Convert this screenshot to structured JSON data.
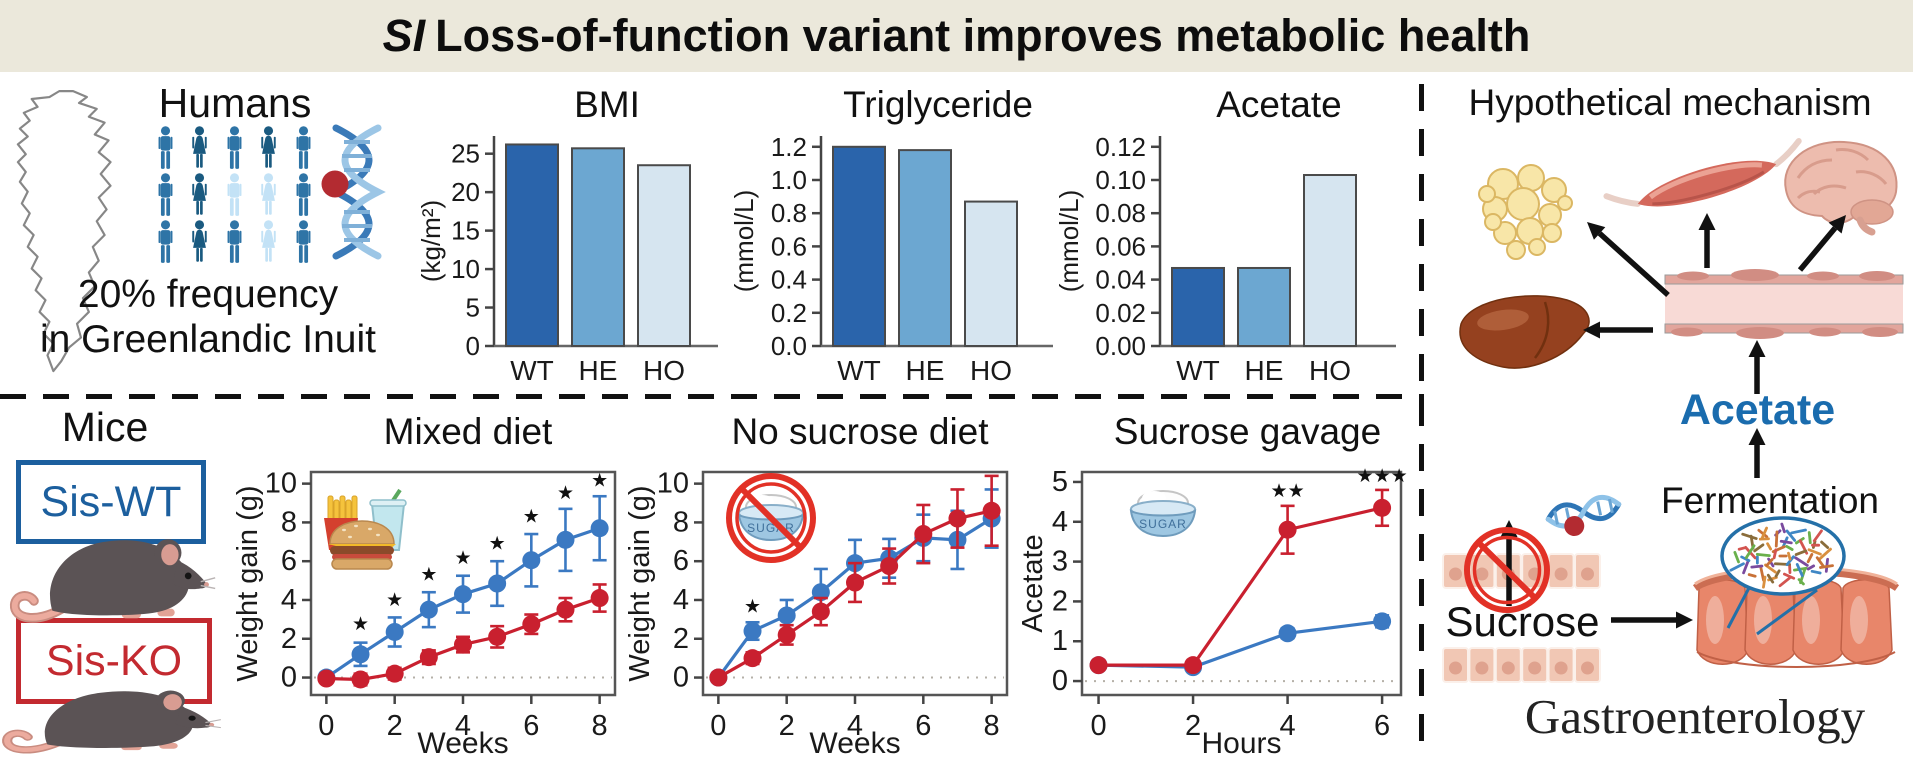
{
  "banner": {
    "title_italic": "SI",
    "title_rest": "Loss-of-function variant improves metabolic health",
    "bg_color": "#ebe8db"
  },
  "humans": {
    "heading": "Humans",
    "caption_line1": "20% frequency",
    "caption_line2": "in Greenlandic Inuit"
  },
  "people_colors": {
    "dark": "#1a5a80",
    "mid": "#2e74a6",
    "light": "#c3e2f6"
  },
  "people": [
    {
      "sex": "male",
      "shade": "mid"
    },
    {
      "sex": "female",
      "shade": "dark"
    },
    {
      "sex": "male",
      "shade": "mid"
    },
    {
      "sex": "female",
      "shade": "dark"
    },
    {
      "sex": "male",
      "shade": "mid"
    },
    {
      "sex": "male",
      "shade": "mid"
    },
    {
      "sex": "female",
      "shade": "dark"
    },
    {
      "sex": "male",
      "shade": "light"
    },
    {
      "sex": "female",
      "shade": "light"
    },
    {
      "sex": "male",
      "shade": "mid"
    },
    {
      "sex": "male",
      "shade": "mid"
    },
    {
      "sex": "female",
      "shade": "dark"
    },
    {
      "sex": "male",
      "shade": "mid"
    },
    {
      "sex": "female",
      "shade": "light"
    },
    {
      "sex": "male",
      "shade": "mid"
    }
  ],
  "mice": {
    "heading": "Mice",
    "wt_label": "Sis-WT",
    "ko_label": "Sis-KO",
    "wt_color": "#1c5f9e",
    "ko_color": "#c32a30"
  },
  "mechanism": {
    "heading": "Hypothetical mechanism",
    "acetate_label": "Acetate",
    "acetate_color": "#1a6cae",
    "fermentation_label": "Fermentation",
    "sucrose_label": "Sucrose",
    "journal_logo": "Gastroenterology",
    "sugar_bowl_label": "SUGAR"
  },
  "chart_data": [
    {
      "id": "bmi",
      "type": "bar",
      "title": "BMI",
      "ylabel": "(kg/m²)",
      "categories": [
        "WT",
        "HE",
        "HO"
      ],
      "values": [
        26.2,
        25.7,
        23.5
      ],
      "ylim": [
        0,
        27.3
      ],
      "yticks": [
        0,
        5,
        10,
        15,
        20,
        25
      ],
      "ytick_labels": [
        "0",
        "5",
        "10",
        "15",
        "20",
        "25"
      ],
      "bar_colors": [
        "#2a64ab",
        "#6ca7d1",
        "#d6e5f0"
      ]
    },
    {
      "id": "triglyceride",
      "type": "bar",
      "title": "Triglyceride",
      "ylabel": "(mmol/L)",
      "categories": [
        "WT",
        "HE",
        "HO"
      ],
      "values": [
        1.2,
        1.18,
        0.87
      ],
      "ylim": [
        0,
        1.265
      ],
      "yticks": [
        0,
        0.2,
        0.4,
        0.6,
        0.8,
        1.0,
        1.2
      ],
      "ytick_labels": [
        "0.0",
        "0.2",
        "0.4",
        "0.6",
        "0.8",
        "1.0",
        "1.2"
      ],
      "bar_colors": [
        "#2a64ab",
        "#6ca7d1",
        "#d6e5f0"
      ]
    },
    {
      "id": "acetate",
      "type": "bar",
      "title": "Acetate",
      "ylabel": "(mmol/L)",
      "categories": [
        "WT",
        "HE",
        "HO"
      ],
      "values": [
        0.047,
        0.047,
        0.103
      ],
      "ylim": [
        0,
        0.1265
      ],
      "yticks": [
        0,
        0.02,
        0.04,
        0.06,
        0.08,
        0.1,
        0.12
      ],
      "ytick_labels": [
        "0.00",
        "0.02",
        "0.04",
        "0.06",
        "0.08",
        "0.10",
        "0.12"
      ],
      "bar_colors": [
        "#2a64ab",
        "#6ca7d1",
        "#d6e5f0"
      ]
    },
    {
      "id": "mixed_diet",
      "type": "line",
      "title": "Mixed diet",
      "xlabel": "Weeks",
      "ylabel": "Weight gain (g)",
      "icon": "fast-food",
      "x": [
        0,
        1,
        2,
        3,
        4,
        5,
        6,
        7,
        8
      ],
      "xticks": [
        0,
        2,
        4,
        6,
        8
      ],
      "yticks": [
        0,
        2,
        4,
        6,
        8,
        10
      ],
      "xlim": [
        -0.45,
        8.45
      ],
      "ylim": [
        -0.9,
        10.6
      ],
      "series": [
        {
          "name": "Sis-WT",
          "color": "#3b79c2",
          "values": [
            0,
            1.2,
            2.35,
            3.5,
            4.3,
            4.85,
            6.05,
            7.1,
            7.7
          ],
          "errors": [
            0.2,
            0.6,
            0.75,
            0.9,
            0.95,
            1.15,
            1.35,
            1.6,
            1.65
          ]
        },
        {
          "name": "Sis-KO",
          "color": "#c9202f",
          "values": [
            -0.05,
            -0.1,
            0.2,
            1.05,
            1.7,
            2.1,
            2.75,
            3.5,
            4.1
          ],
          "errors": [
            0.12,
            0.3,
            0.3,
            0.35,
            0.4,
            0.55,
            0.5,
            0.6,
            0.7
          ]
        }
      ],
      "annotations": [
        {
          "x": 1,
          "y": 2.45,
          "text": "★"
        },
        {
          "x": 2,
          "y": 3.7,
          "text": "★"
        },
        {
          "x": 3,
          "y": 5.0,
          "text": "★"
        },
        {
          "x": 4,
          "y": 5.85,
          "text": "★"
        },
        {
          "x": 5,
          "y": 6.6,
          "text": "★"
        },
        {
          "x": 6,
          "y": 8.0,
          "text": "★"
        },
        {
          "x": 7,
          "y": 9.2,
          "text": "★"
        },
        {
          "x": 8,
          "y": 9.85,
          "text": "★"
        }
      ]
    },
    {
      "id": "no_sucrose_diet",
      "type": "line",
      "title": "No sucrose diet",
      "xlabel": "Weeks",
      "ylabel": "Weight gain (g)",
      "icon": "no-sugar-bowl",
      "x": [
        0,
        1,
        2,
        3,
        4,
        5,
        6,
        7,
        8
      ],
      "xticks": [
        0,
        2,
        4,
        6,
        8
      ],
      "yticks": [
        0,
        2,
        4,
        6,
        8,
        10
      ],
      "xlim": [
        -0.45,
        8.45
      ],
      "ylim": [
        -0.9,
        10.6
      ],
      "series": [
        {
          "name": "Sis-WT",
          "color": "#3b79c2",
          "values": [
            0,
            2.4,
            3.2,
            4.4,
            5.9,
            6.15,
            7.2,
            7.1,
            8.2
          ],
          "errors": [
            0.1,
            0.45,
            0.8,
            1.2,
            1.2,
            1.0,
            1.2,
            1.5,
            1.5
          ]
        },
        {
          "name": "Sis-KO",
          "color": "#c9202f",
          "values": [
            0,
            1.0,
            2.2,
            3.4,
            4.9,
            5.75,
            7.4,
            8.2,
            8.6
          ],
          "errors": [
            0.1,
            0.3,
            0.5,
            0.7,
            1.0,
            0.9,
            1.5,
            1.5,
            1.8
          ]
        }
      ],
      "annotations": [
        {
          "x": 1,
          "y": 3.35,
          "text": "★"
        }
      ]
    },
    {
      "id": "sucrose_gavage",
      "type": "line",
      "title": "Sucrose gavage",
      "xlabel": "Hours",
      "ylabel": "Acetate",
      "icon": "sugar-bowl",
      "x": [
        0,
        2,
        4,
        6
      ],
      "xticks": [
        0,
        2,
        4,
        6
      ],
      "yticks": [
        0,
        1,
        2,
        3,
        4,
        5
      ],
      "xlim": [
        -0.35,
        6.4
      ],
      "ylim": [
        -0.35,
        5.25
      ],
      "series": [
        {
          "name": "Sis-WT",
          "color": "#3b79c2",
          "values": [
            0.4,
            0.35,
            1.2,
            1.5
          ],
          "errors": [
            0.06,
            0.08,
            0.12,
            0.15
          ]
        },
        {
          "name": "Sis-KO",
          "color": "#c9202f",
          "values": [
            0.4,
            0.4,
            3.8,
            4.35
          ],
          "errors": [
            0.08,
            0.1,
            0.6,
            0.45
          ]
        }
      ],
      "annotations": [
        {
          "x": 4,
          "y": 4.62,
          "text": "★★"
        },
        {
          "x": 6,
          "y": 5.0,
          "text": "★★★"
        }
      ]
    }
  ]
}
